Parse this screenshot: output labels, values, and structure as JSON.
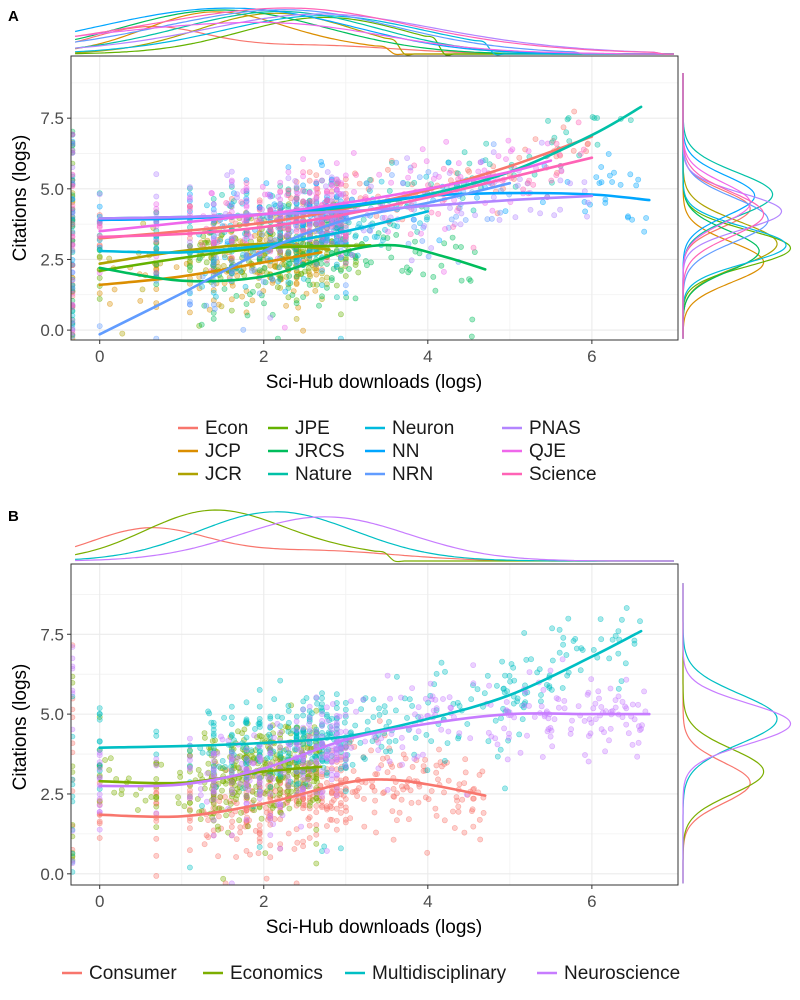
{
  "chart_data": [
    {
      "panel": "A",
      "type": "scatter",
      "xlabel": "Sci-Hub downloads (logs)",
      "ylabel": "Citations (logs)",
      "xlim": [
        -0.35,
        7.05
      ],
      "ylim": [
        -0.35,
        9.7
      ],
      "xticks": [
        "0",
        "2",
        "4",
        "6"
      ],
      "yticks": [
        "0.0",
        "2.5",
        "5.0",
        "7.5"
      ],
      "series": [
        {
          "name": "Econ",
          "color": "#F8766D",
          "x": [
            0,
            1,
            2,
            3,
            4,
            5,
            6
          ],
          "smooth": [
            3.25,
            3.5,
            3.8,
            4.3,
            4.95,
            5.8,
            6.85
          ]
        },
        {
          "name": "JCP",
          "color": "#DB8E00",
          "x": [
            0,
            1,
            2,
            2.7
          ],
          "smooth": [
            1.6,
            1.9,
            2.4,
            2.75
          ]
        },
        {
          "name": "JCR",
          "color": "#AEA200",
          "x": [
            0,
            1,
            2,
            2.8
          ],
          "smooth": [
            2.35,
            2.8,
            3.05,
            2.85
          ]
        },
        {
          "name": "JPE",
          "color": "#64B200",
          "x": [
            0,
            1,
            2,
            3.3
          ],
          "smooth": [
            2.1,
            2.55,
            2.9,
            3.0
          ]
        },
        {
          "name": "JRCS",
          "color": "#00BD5C",
          "x": [
            0,
            1,
            2,
            3,
            3.6,
            4.2,
            4.7
          ],
          "smooth": [
            2.2,
            1.75,
            1.9,
            2.8,
            3.0,
            2.6,
            2.15
          ]
        },
        {
          "name": "Nature",
          "color": "#00C1A7",
          "x": [
            0,
            1,
            2,
            3,
            4,
            5,
            6,
            6.6
          ],
          "smooth": [
            3.95,
            4.0,
            4.1,
            4.35,
            4.8,
            5.6,
            6.9,
            7.9
          ]
        },
        {
          "name": "Neuron",
          "color": "#00BADE",
          "x": [
            0,
            1,
            2,
            3,
            4
          ],
          "smooth": [
            2.8,
            2.75,
            3.0,
            3.5,
            4.2
          ]
        },
        {
          "name": "NN",
          "color": "#00A6FF",
          "x": [
            0,
            1,
            2,
            3,
            4,
            5,
            6,
            6.7
          ],
          "smooth": [
            3.9,
            3.95,
            4.1,
            4.4,
            4.75,
            4.85,
            4.8,
            4.6
          ]
        },
        {
          "name": "NRN",
          "color": "#619CFF",
          "x": [
            0,
            1,
            2,
            3,
            4,
            5
          ],
          "smooth": [
            -0.15,
            1.3,
            2.8,
            3.9,
            4.5,
            5.2
          ]
        },
        {
          "name": "PNAS",
          "color": "#B385FF",
          "x": [
            0,
            1,
            2,
            3,
            4,
            5,
            6
          ],
          "smooth": [
            3.95,
            4.0,
            4.1,
            4.2,
            4.4,
            4.6,
            4.75
          ]
        },
        {
          "name": "QJE",
          "color": "#EF67EB",
          "x": [
            0,
            1,
            2,
            3,
            4,
            5,
            5.5
          ],
          "smooth": [
            3.5,
            3.8,
            4.1,
            4.5,
            5.0,
            5.6,
            6.0
          ]
        },
        {
          "name": "Science",
          "color": "#FF63B6",
          "x": [
            0,
            1,
            2,
            3,
            4,
            5,
            6
          ],
          "smooth": [
            3.3,
            3.4,
            3.65,
            4.1,
            4.7,
            5.4,
            6.1
          ]
        }
      ]
    },
    {
      "panel": "B",
      "type": "scatter",
      "xlabel": "Sci-Hub downloads (logs)",
      "ylabel": "Citations (logs)",
      "xlim": [
        -0.35,
        7.05
      ],
      "ylim": [
        -0.35,
        9.7
      ],
      "xticks": [
        "0",
        "2",
        "4",
        "6"
      ],
      "yticks": [
        "0.0",
        "2.5",
        "5.0",
        "7.5"
      ],
      "series": [
        {
          "name": "Consumer",
          "color": "#F8766D",
          "x": [
            0,
            1,
            2,
            3,
            3.5,
            4,
            4.7
          ],
          "smooth": [
            1.85,
            1.8,
            2.2,
            2.85,
            2.95,
            2.8,
            2.45
          ]
        },
        {
          "name": "Economics",
          "color": "#7CAE00",
          "x": [
            0,
            1,
            2,
            2.7
          ],
          "smooth": [
            2.9,
            2.85,
            3.2,
            3.35
          ]
        },
        {
          "name": "Multidisciplinary",
          "color": "#00BFC4",
          "x": [
            0,
            1,
            2,
            3,
            4,
            5,
            6,
            6.6
          ],
          "smooth": [
            3.95,
            4.0,
            4.1,
            4.3,
            4.85,
            5.6,
            6.8,
            7.6
          ]
        },
        {
          "name": "Neuroscience",
          "color": "#C77CFF",
          "x": [
            0,
            1,
            2,
            3,
            4,
            5,
            6,
            6.7
          ],
          "smooth": [
            2.75,
            2.8,
            3.3,
            4.2,
            4.7,
            5.0,
            5.0,
            5.0
          ]
        }
      ]
    }
  ]
}
